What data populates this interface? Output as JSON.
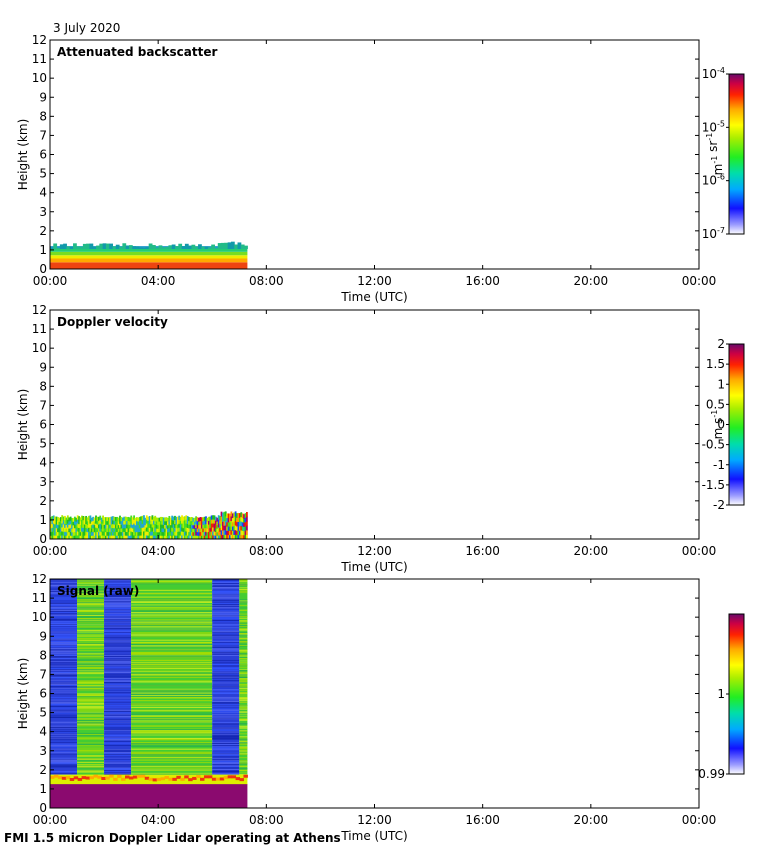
{
  "figure": {
    "date": "3 July 2020",
    "footer": "FMI 1.5 micron Doppler Lidar operating at Athens"
  },
  "chart_data": [
    {
      "type": "heatmap",
      "title": "Attenuated backscatter",
      "xlabel": "Time (UTC)",
      "ylabel": "Height (km)",
      "x_ticks": [
        "00:00",
        "04:00",
        "08:00",
        "12:00",
        "16:00",
        "20:00",
        "00:00"
      ],
      "xlim_hours": [
        0,
        24
      ],
      "ylim": [
        0,
        12
      ],
      "y_ticks": [
        "0",
        "1",
        "2",
        "3",
        "4",
        "5",
        "6",
        "7",
        "8",
        "9",
        "10",
        "11",
        "12"
      ],
      "data_extent_hours": [
        0,
        7.3
      ],
      "data_top_km": 1.2,
      "colorbar": {
        "scale": "log",
        "range": [
          1e-07,
          0.0001
        ],
        "ticks": [
          {
            "base": "10",
            "exp": "-4"
          },
          {
            "base": "10",
            "exp": "-5"
          },
          {
            "base": "10",
            "exp": "-6"
          },
          {
            "base": "10",
            "exp": "-7"
          }
        ],
        "unit_parts": [
          {
            "base": "m",
            "exp": "-1"
          },
          {
            "base": " sr",
            "exp": "-1"
          }
        ]
      }
    },
    {
      "type": "heatmap",
      "title": "Doppler velocity",
      "xlabel": "Time (UTC)",
      "ylabel": "Height (km)",
      "x_ticks": [
        "00:00",
        "04:00",
        "08:00",
        "12:00",
        "16:00",
        "20:00",
        "00:00"
      ],
      "xlim_hours": [
        0,
        24
      ],
      "ylim": [
        0,
        12
      ],
      "y_ticks": [
        "0",
        "1",
        "2",
        "3",
        "4",
        "5",
        "6",
        "7",
        "8",
        "9",
        "10",
        "11",
        "12"
      ],
      "data_extent_hours": [
        0,
        7.3
      ],
      "data_top_km": 1.2,
      "colorbar": {
        "scale": "linear",
        "range": [
          -2,
          2
        ],
        "ticks": [
          "2",
          "1.5",
          "1",
          "0.5",
          "0",
          "-0.5",
          "-1",
          "-1.5",
          "-2"
        ],
        "unit_parts": [
          {
            "base": "m s",
            "exp": "-1"
          }
        ]
      }
    },
    {
      "type": "heatmap",
      "title": "Signal (raw)",
      "xlabel": "Time (UTC)",
      "ylabel": "Height (km)",
      "x_ticks": [
        "00:00",
        "04:00",
        "08:00",
        "12:00",
        "16:00",
        "20:00",
        "00:00"
      ],
      "xlim_hours": [
        0,
        24
      ],
      "ylim": [
        0,
        12
      ],
      "y_ticks": [
        "0",
        "1",
        "2",
        "3",
        "4",
        "5",
        "6",
        "7",
        "8",
        "9",
        "10",
        "11",
        "12"
      ],
      "data_extent_hours": [
        0,
        7.3
      ],
      "data_top_km": 12,
      "colorbar": {
        "scale": "linear",
        "range": [
          0.99,
          1.01
        ],
        "ticks": [
          "1",
          "0.99"
        ]
      }
    }
  ],
  "colors": {
    "low_signal_blue": "#2a3fd6",
    "high_signal_green": "#33cc33",
    "surface_purple": "#8b0a6f",
    "surface_red": "#ee3311"
  }
}
